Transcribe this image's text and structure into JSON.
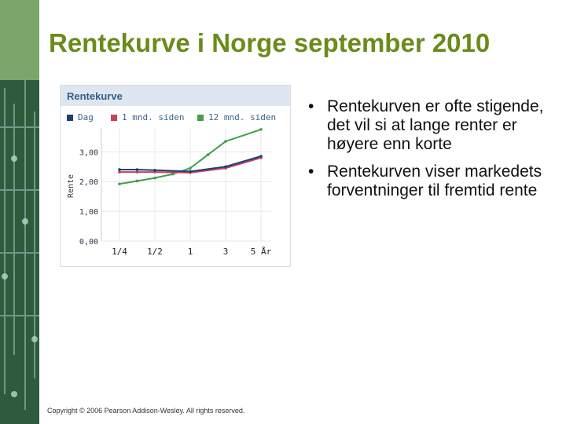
{
  "slide": {
    "title": "Rentekurve i Norge september 2010",
    "bullets": [
      "Rentekurven er ofte stigende, det vil si at lange renter er høyere enn korte",
      "Rentekurven viser markedets forventninger til fremtid rente"
    ],
    "bullet_symbol": "•",
    "copyright": "Copyright © 2006 Pearson Addison-Wesley. All rights reserved."
  },
  "chart_data": {
    "type": "line",
    "title": "Rentekurve",
    "ylabel": "Rente",
    "xlabel": "",
    "categories": [
      "1/4",
      "1/2",
      "1",
      "3",
      "5 År"
    ],
    "x_tick_labels": [
      "1/4",
      "1/2",
      "1",
      "3",
      "5 År"
    ],
    "x": [
      0.25,
      0.5,
      1,
      3,
      5
    ],
    "x_axis_positions": [
      0,
      1,
      2,
      3,
      4
    ],
    "y_tick_labels": [
      "0,00",
      "1,00",
      "2,00",
      "3,00"
    ],
    "y_ticks": [
      0,
      1,
      2,
      3
    ],
    "ylim": [
      0,
      3.8
    ],
    "grid": true,
    "legend_position": "top",
    "series": [
      {
        "name": "Dag",
        "color": "#1f3f73",
        "x": [
          0,
          0.5,
          1,
          2,
          3,
          4
        ],
        "values": [
          2.4,
          2.4,
          2.38,
          2.34,
          2.5,
          2.85
        ]
      },
      {
        "name": "1 mnd. siden",
        "color": "#c8405a",
        "x": [
          0,
          0.5,
          1,
          2,
          3,
          4
        ],
        "values": [
          2.32,
          2.32,
          2.32,
          2.3,
          2.45,
          2.8
        ]
      },
      {
        "name": "12 mnd. siden",
        "color": "#3fa04a",
        "x": [
          0,
          0.5,
          1,
          1.5,
          2,
          2.5,
          3,
          4
        ],
        "values": [
          1.92,
          2.02,
          2.12,
          2.25,
          2.45,
          2.9,
          3.35,
          3.75
        ]
      }
    ],
    "colors": {
      "header_bg": "#dfe6ef",
      "title_color": "#335e8a",
      "grid": "#e4e8ee",
      "tick_text": "#334"
    }
  }
}
